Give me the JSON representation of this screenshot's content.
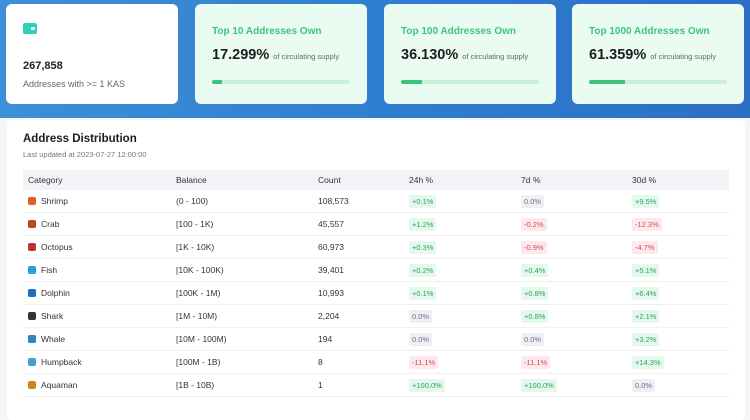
{
  "stat_cards": [
    {
      "value": "267,858",
      "label": "Addresses with >= 1 KAS"
    },
    {
      "title": "Top 10 Addresses Own",
      "value": "17.299%",
      "suffix": "of circulating supply"
    },
    {
      "title": "Top 100 Addresses Own",
      "value": "36.130%",
      "suffix": "of circulating supply"
    },
    {
      "title": "Top 1000 Addresses Own",
      "value": "61.359%",
      "suffix": "of circulating supply"
    }
  ],
  "distribution": {
    "title": "Address Distribution",
    "updated": "Last updated at 2023-07-27 12:00:00",
    "columns": [
      "Category",
      "Balance",
      "Count",
      "24h %",
      "7d %",
      "30d %"
    ],
    "rows": [
      [
        "Shrimp",
        "(0 - 100)",
        "108,573",
        "+0.1%",
        "0.0%",
        "+9.5%"
      ],
      [
        "Crab",
        "[100 - 1K)",
        "45,557",
        "+1.2%",
        "-0.2%",
        "-12.3%"
      ],
      [
        "Octopus",
        "[1K - 10K)",
        "60,973",
        "+0.3%",
        "-0.9%",
        "-4.7%"
      ],
      [
        "Fish",
        "[10K - 100K)",
        "39,401",
        "+0.2%",
        "+0.4%",
        "+5.1%"
      ],
      [
        "Dolphin",
        "[100K - 1M)",
        "10,993",
        "+0.1%",
        "+0.8%",
        "+6.4%"
      ],
      [
        "Shark",
        "[1M - 10M)",
        "2,204",
        "0.0%",
        "+0.8%",
        "+2.1%"
      ],
      [
        "Whale",
        "[10M - 100M)",
        "194",
        "0.0%",
        "0.0%",
        "+3.2%"
      ],
      [
        "Humpback",
        "[100M - 1B)",
        "8",
        "-11.1%",
        "-11.1%",
        "+14.3%"
      ],
      [
        "Aquaman",
        "[1B - 10B)",
        "1",
        "+100.0%",
        "+100.0%",
        "0.0%"
      ]
    ]
  }
}
